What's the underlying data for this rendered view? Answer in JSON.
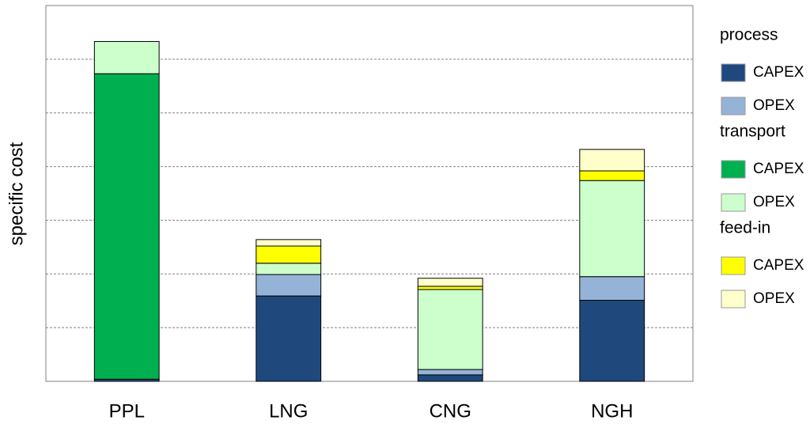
{
  "chart_data": {
    "type": "stacked_bar",
    "y_label": "specific cost",
    "categories": [
      "PPL",
      "LNG",
      "CNG",
      "NGH"
    ],
    "series": [
      {
        "group": "process",
        "name": "CAPEX",
        "color": "#1f497d",
        "values": [
          0.04,
          1.59,
          0.12,
          1.51
        ]
      },
      {
        "group": "process",
        "name": "OPEX",
        "color": "#95b3d7",
        "values": [
          0,
          0.4,
          0.1,
          0.44
        ]
      },
      {
        "group": "transport",
        "name": "CAPEX",
        "color": "#00b050",
        "values": [
          5.69,
          0,
          0,
          0
        ]
      },
      {
        "group": "transport",
        "name": "OPEX",
        "color": "#ccffcc",
        "values": [
          0.6,
          0.21,
          1.49,
          1.79
        ]
      },
      {
        "group": "feed-in",
        "name": "CAPEX",
        "color": "#ffff00",
        "values": [
          0,
          0.32,
          0.06,
          0.18
        ]
      },
      {
        "group": "feed-in",
        "name": "OPEX",
        "color": "#ffffcc",
        "values": [
          0,
          0.12,
          0.15,
          0.4
        ]
      }
    ],
    "ylim": [
      0,
      7
    ],
    "yticks": [
      1,
      2,
      3,
      4,
      5,
      6
    ],
    "grid": true
  }
}
